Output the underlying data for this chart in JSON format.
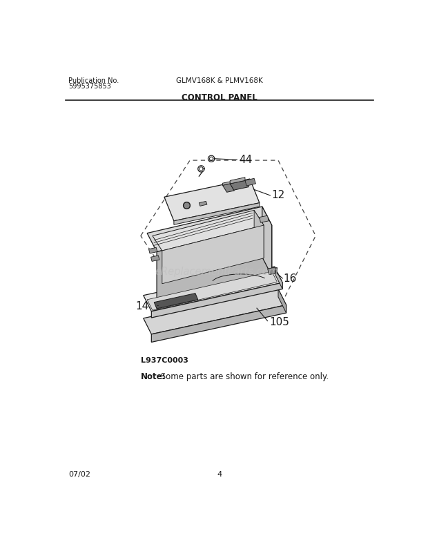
{
  "pub_no_label": "Publication No.",
  "pub_no": "5995375853",
  "model": "GLMV168K & PLMV168K",
  "section": "CONTROL PANEL",
  "diagram_code": "L937C0003",
  "note_bold": "Note:",
  "note_rest": " Some parts are shown for reference only.",
  "page": "4",
  "date": "07/02",
  "watermark": "eReplacementParts.com",
  "bg_color": "#ffffff",
  "line_color": "#1a1a1a",
  "dashed_color": "#444444",
  "fill_light": "#e8e8e8",
  "fill_mid": "#c8c8c8",
  "fill_dark": "#a0a0a0",
  "fill_comp": "#888888",
  "fill_comp_dark": "#555555"
}
